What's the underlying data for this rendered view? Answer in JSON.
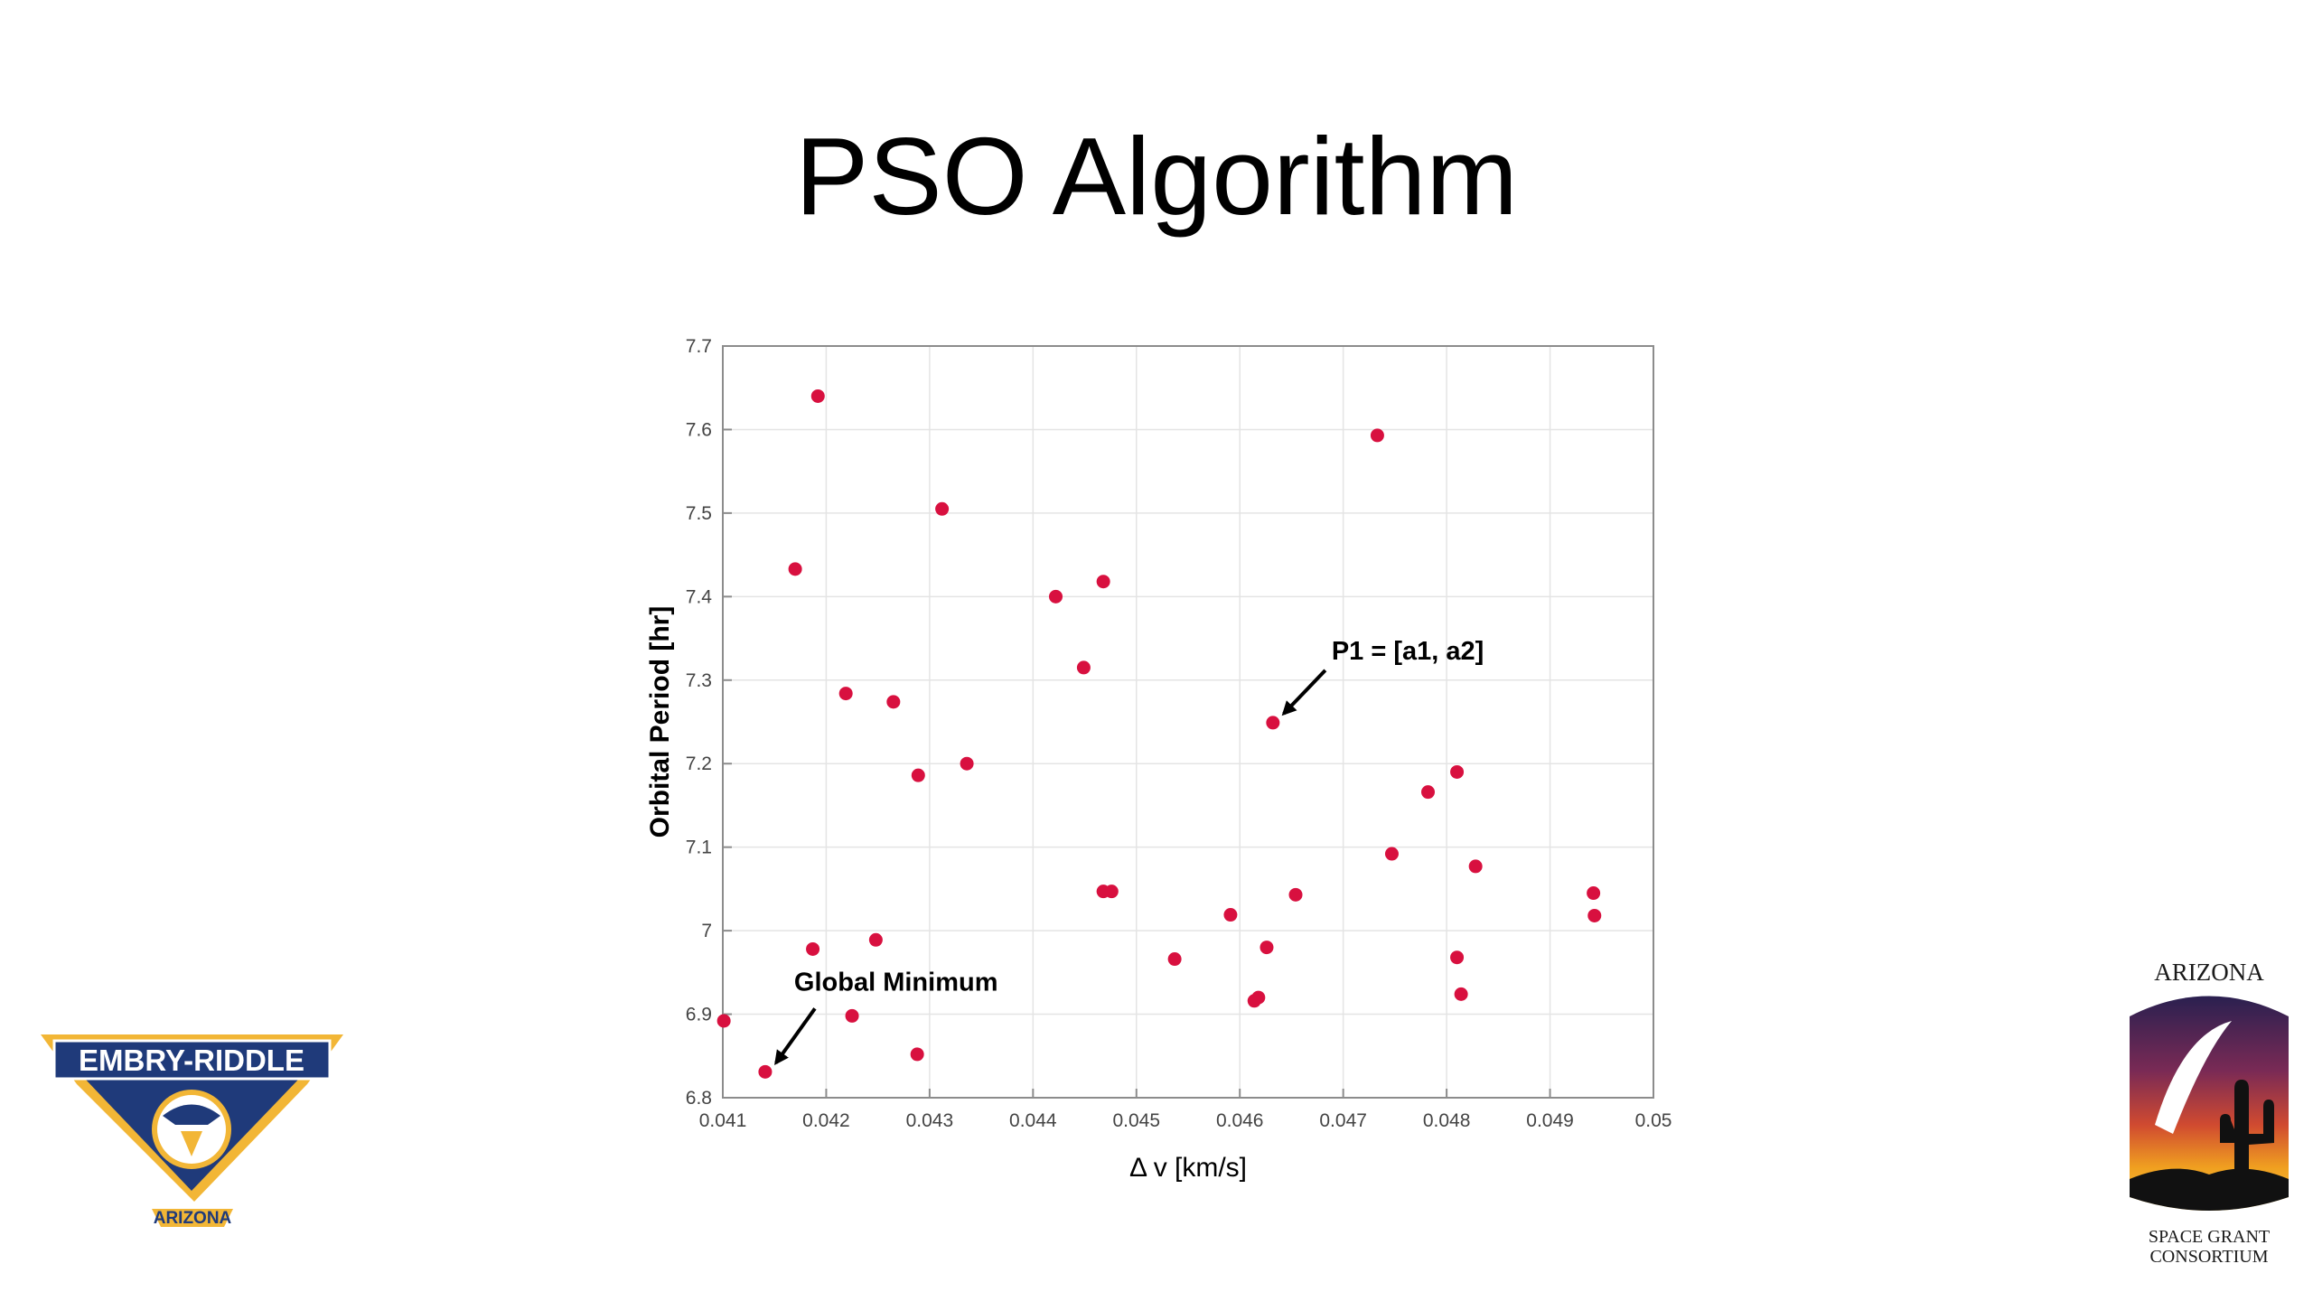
{
  "slide": {
    "title": "PSO Algorithm"
  },
  "colors": {
    "point": "#d8103f",
    "axis": "#8c8c8c",
    "grid": "#e4e4e4",
    "text": "#000000",
    "erau_blue": "#1f3a7a",
    "erau_gold": "#f2b636",
    "asgc_dark": "#1a1a1a"
  },
  "logos": {
    "left": {
      "text": "EMBRY-RIDDLE",
      "subtext": "ARIZONA",
      "icon": "eagle-shield-icon"
    },
    "right": {
      "top_text": "ARIZONA",
      "bottom_line1": "SPACE GRANT",
      "bottom_line2": "CONSORTIUM",
      "icon": "saguaro-comet-icon"
    }
  },
  "chart_data": {
    "type": "scatter",
    "title": "",
    "xlabel": "Δ v [km/s]",
    "ylabel": "Orbital Period [hr]",
    "xlim": [
      0.041,
      0.05
    ],
    "ylim": [
      6.8,
      7.7
    ],
    "xticks": [
      "0.041",
      "0.042",
      "0.043",
      "0.044",
      "0.045",
      "0.046",
      "0.047",
      "0.048",
      "0.049",
      "0.05"
    ],
    "yticks": [
      "6.8",
      "6.9",
      "7",
      "7.1",
      "7.2",
      "7.3",
      "7.4",
      "7.5",
      "7.6",
      "7.7"
    ],
    "grid": true,
    "points": [
      [
        0.04192,
        7.64
      ],
      [
        0.04733,
        7.593
      ],
      [
        0.04312,
        7.505
      ],
      [
        0.0417,
        7.433
      ],
      [
        0.04468,
        7.418
      ],
      [
        0.04422,
        7.4
      ],
      [
        0.04449,
        7.315
      ],
      [
        0.04219,
        7.284
      ],
      [
        0.04265,
        7.274
      ],
      [
        0.04632,
        7.249
      ],
      [
        0.04336,
        7.2
      ],
      [
        0.04289,
        7.186
      ],
      [
        0.0481,
        7.19
      ],
      [
        0.04782,
        7.166
      ],
      [
        0.04747,
        7.092
      ],
      [
        0.04828,
        7.077
      ],
      [
        0.04468,
        7.047
      ],
      [
        0.04476,
        7.047
      ],
      [
        0.04654,
        7.043
      ],
      [
        0.04942,
        7.045
      ],
      [
        0.04943,
        7.018
      ],
      [
        0.04591,
        7.019
      ],
      [
        0.04248,
        6.989
      ],
      [
        0.04187,
        6.978
      ],
      [
        0.04626,
        6.98
      ],
      [
        0.0481,
        6.968
      ],
      [
        0.04537,
        6.966
      ],
      [
        0.04618,
        6.92
      ],
      [
        0.04614,
        6.916
      ],
      [
        0.04814,
        6.924
      ],
      [
        0.04225,
        6.898
      ],
      [
        0.04101,
        6.892
      ],
      [
        0.04288,
        6.852
      ],
      [
        0.04141,
        6.831
      ]
    ],
    "annotations": [
      {
        "text": "P1 = [a1, a2]",
        "point": [
          0.04632,
          7.249
        ]
      },
      {
        "text": "Global Minimum",
        "point": [
          0.04141,
          6.831
        ]
      }
    ]
  }
}
